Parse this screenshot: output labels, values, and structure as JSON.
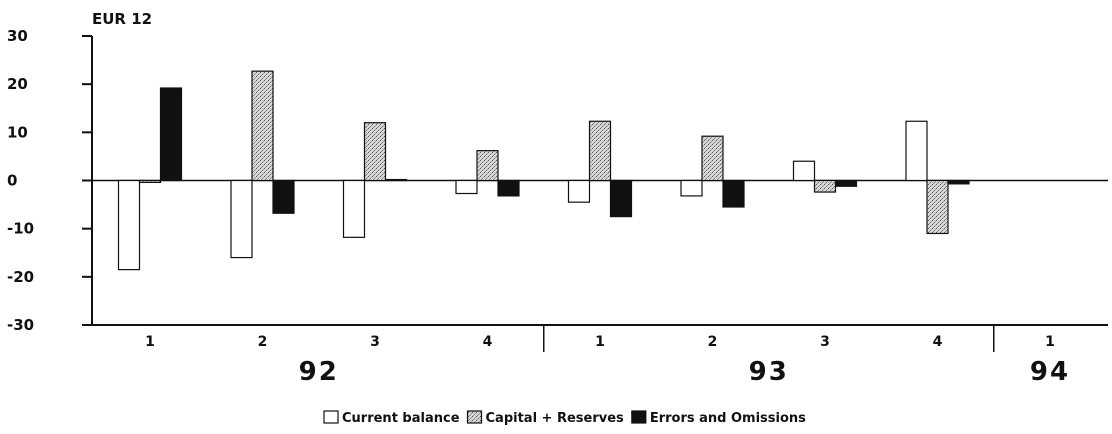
{
  "chart_data": {
    "type": "bar",
    "unit_label": "EUR 12",
    "categories": [
      "1",
      "2",
      "3",
      "4",
      "1",
      "2",
      "3",
      "4",
      "1"
    ],
    "years": [
      "92",
      "93",
      "94"
    ],
    "year_groups": [
      {
        "label": "92",
        "span": [
          0,
          3
        ]
      },
      {
        "label": "93",
        "span": [
          4,
          7
        ]
      },
      {
        "label": "94",
        "span": [
          8,
          8
        ]
      }
    ],
    "series": [
      {
        "name": "Current balance",
        "values": [
          -18.5,
          -16,
          -11.8,
          -2.7,
          -4.5,
          -3.2,
          4,
          12.3,
          0
        ],
        "fill": "#ffffff"
      },
      {
        "name": "Capital + Reserves",
        "values": [
          -0.4,
          22.7,
          12,
          6.2,
          12.3,
          9.2,
          -2.4,
          -11,
          0
        ],
        "fill": "#c8c8c8"
      },
      {
        "name": "Errors and Omissions",
        "values": [
          19.2,
          -6.8,
          0.2,
          -3.2,
          -7.5,
          -5.5,
          -1.2,
          -0.7,
          0
        ],
        "fill": "#111111"
      }
    ],
    "ylim": [
      -30,
      30
    ],
    "yticks": [
      "30",
      "20",
      "10",
      "0",
      "-10",
      "-20",
      "-30"
    ],
    "ytick_values": [
      30,
      20,
      10,
      0,
      -10,
      -20,
      -30
    ],
    "grid": false,
    "legend_position": "bottom"
  }
}
